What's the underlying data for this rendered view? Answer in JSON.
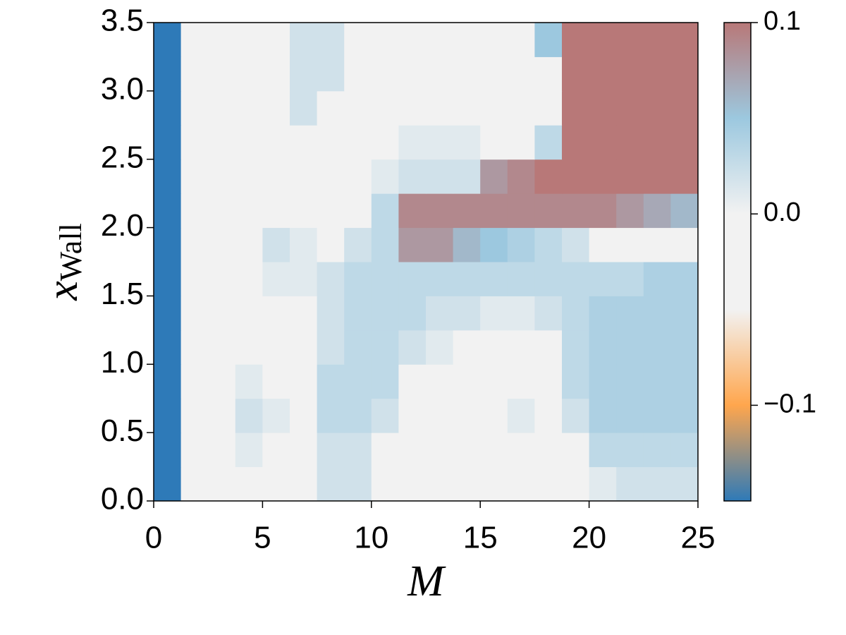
{
  "chart_data": {
    "type": "heatmap",
    "xlabel": "M",
    "ylabel": "x",
    "ylabel_sub": "Wall",
    "xlim": [
      0,
      25
    ],
    "ylim": [
      0,
      3.5
    ],
    "xticks": [
      0,
      5,
      10,
      15,
      20,
      25
    ],
    "yticks": [
      {
        "value": 0,
        "label": "0.0"
      },
      {
        "value": 0.5,
        "label": "0.5"
      },
      {
        "value": 1,
        "label": "1.0"
      },
      {
        "value": 1.5,
        "label": "1.5"
      },
      {
        "value": 2,
        "label": "2.0"
      },
      {
        "value": 2.5,
        "label": "2.5"
      },
      {
        "value": 3,
        "label": "3.0"
      },
      {
        "value": 3.5,
        "label": "3.5"
      }
    ],
    "xbins": [
      0,
      1.25,
      2.5,
      3.75,
      5,
      6.25,
      7.5,
      8.75,
      10,
      11.25,
      12.5,
      13.75,
      15,
      16.25,
      17.5,
      18.75,
      20,
      21.25,
      22.5,
      23.75,
      25
    ],
    "ybins": [
      0,
      0.25,
      0.5,
      0.75,
      1,
      1.25,
      1.5,
      1.75,
      2,
      2.25,
      2.5,
      2.75,
      3,
      3.25,
      3.5
    ],
    "z": [
      [
        -0.15,
        0,
        0,
        0,
        0,
        0,
        0.02,
        0.02,
        0,
        0,
        0,
        0,
        0,
        0,
        0,
        0,
        0.01,
        0.02,
        0.02,
        0.02
      ],
      [
        -0.15,
        0,
        0,
        0.01,
        0,
        0,
        0.02,
        0.02,
        0,
        0,
        0,
        0,
        0,
        0,
        0,
        0,
        0.03,
        0.03,
        0.03,
        0.03
      ],
      [
        -0.15,
        0,
        0,
        0.02,
        0.01,
        0,
        0.03,
        0.03,
        0.02,
        0,
        0,
        0,
        0,
        0.01,
        0,
        0.02,
        0.04,
        0.04,
        0.04,
        0.04
      ],
      [
        -0.15,
        0,
        0,
        0.01,
        0,
        0,
        0.03,
        0.03,
        0.03,
        0,
        0,
        0,
        0,
        0,
        0,
        0.03,
        0.04,
        0.04,
        0.04,
        0.04
      ],
      [
        -0.15,
        0,
        0,
        0,
        0,
        0,
        0.02,
        0.03,
        0.03,
        0.02,
        0.01,
        0,
        0,
        0,
        0,
        0.03,
        0.04,
        0.04,
        0.04,
        0.04
      ],
      [
        -0.15,
        0,
        0,
        0,
        0,
        0,
        0.02,
        0.03,
        0.03,
        0.03,
        0.02,
        0.02,
        0.01,
        0.01,
        0.02,
        0.03,
        0.04,
        0.04,
        0.04,
        0.04
      ],
      [
        -0.15,
        0,
        0,
        0,
        0.01,
        0.01,
        0.02,
        0.03,
        0.03,
        0.03,
        0.03,
        0.03,
        0.03,
        0.03,
        0.03,
        0.03,
        0.03,
        0.03,
        0.04,
        0.04
      ],
      [
        -0.15,
        0,
        0,
        0,
        0.02,
        0.01,
        0,
        0.02,
        0.03,
        0.08,
        0.08,
        0.06,
        0.05,
        0.04,
        0.03,
        0.02,
        0,
        0,
        0,
        0
      ],
      [
        -0.15,
        0,
        0,
        0,
        0,
        0,
        0,
        0,
        0.03,
        0.09,
        0.09,
        0.09,
        0.09,
        0.09,
        0.09,
        0.09,
        0.09,
        0.08,
        0.07,
        0.06
      ],
      [
        -0.15,
        0,
        0,
        0,
        0,
        0,
        0,
        0,
        0.01,
        0.02,
        0.02,
        0.02,
        0.08,
        0.09,
        0.1,
        0.1,
        0.1,
        0.1,
        0.1,
        0.1
      ],
      [
        -0.15,
        0,
        0,
        0,
        0,
        0,
        0,
        0,
        0,
        0.01,
        0.01,
        0.01,
        0,
        0,
        0.03,
        0.1,
        0.1,
        0.1,
        0.1,
        0.1
      ],
      [
        -0.15,
        0,
        0,
        0,
        0,
        0.02,
        0,
        0,
        0,
        0,
        0,
        0,
        0,
        0,
        0,
        0.1,
        0.1,
        0.1,
        0.1,
        0.1
      ],
      [
        -0.15,
        0,
        0,
        0,
        0,
        0.02,
        0.02,
        0,
        0,
        0,
        0,
        0,
        0,
        0,
        0,
        0.1,
        0.1,
        0.1,
        0.1,
        0.1
      ],
      [
        -0.15,
        0,
        0,
        0,
        0,
        0.02,
        0.02,
        0,
        0,
        0,
        0,
        0,
        0,
        0,
        0.05,
        0.1,
        0.1,
        0.1,
        0.1,
        0.1
      ]
    ],
    "clim": [
      -0.15,
      0.1
    ],
    "cticks": [
      {
        "value": 0.1,
        "label": "0.1"
      },
      {
        "value": 0,
        "label": "0.0"
      },
      {
        "value": -0.1,
        "label": "−0.1"
      }
    ],
    "colormap": [
      "#2e7ab8",
      "#ffa64d",
      "#f2f2f2",
      "#f2f2f2",
      "#9cc8df",
      "#b87878"
    ]
  }
}
